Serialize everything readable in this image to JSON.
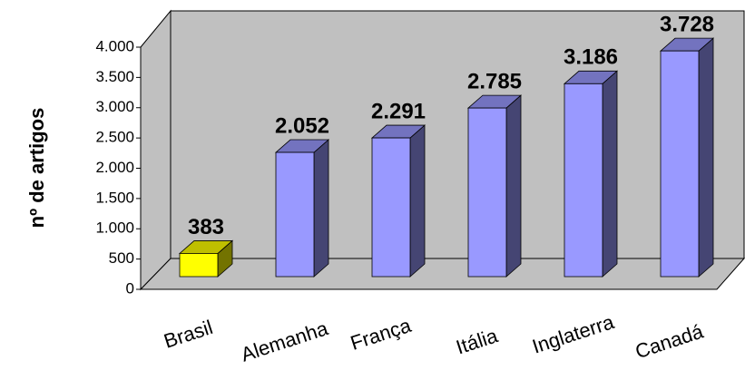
{
  "chart_data": {
    "type": "bar3d",
    "y_label": "nº de artigos",
    "categories": [
      "Brasil",
      "Alemanha",
      "França",
      "Itália",
      "Inglaterra",
      "Canadá"
    ],
    "values": [
      383,
      2052,
      2291,
      2785,
      3186,
      3728
    ],
    "value_labels": [
      "383",
      "2.052",
      "2.291",
      "2.785",
      "3.186",
      "3.728"
    ],
    "colors": [
      "#ffff00",
      "#9999ff",
      "#9999ff",
      "#9999ff",
      "#9999ff",
      "#9999ff"
    ],
    "ylim": [
      0,
      4000
    ],
    "yticks": [
      0,
      500,
      {
        "value": 1000,
        "label": "1.000"
      },
      {
        "value": 1500,
        "label": "1.500"
      },
      {
        "value": 2000,
        "label": "2.000"
      },
      {
        "value": 2500,
        "label": "2.500"
      },
      {
        "value": 3000,
        "label": "3.000"
      },
      {
        "value": 3500,
        "label": "3.500"
      },
      {
        "value": 4000,
        "label": "4.000"
      }
    ]
  }
}
